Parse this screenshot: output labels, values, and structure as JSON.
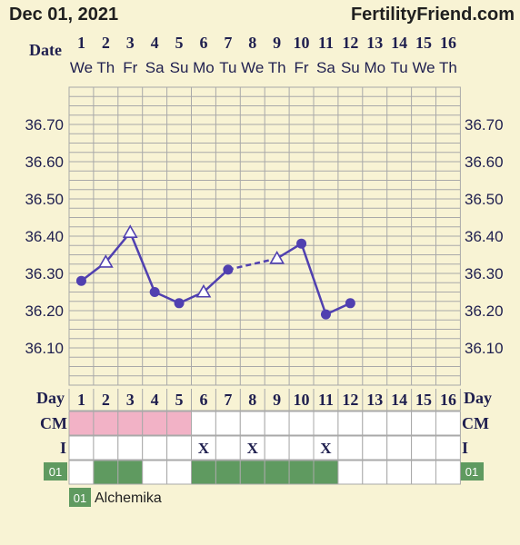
{
  "header": {
    "date": "Dec 01, 2021",
    "site": "FertilityFriend.com"
  },
  "colors": {
    "background": "#f8f3d4",
    "grid": "#a9a9a9",
    "line": "#5040b0",
    "cm_pink": "#f2b2c6",
    "green": "#5f9a60"
  },
  "chart_data": {
    "type": "line",
    "date_label": "Date",
    "x": [
      1,
      2,
      3,
      4,
      5,
      6,
      7,
      8,
      9,
      10,
      11,
      12,
      13,
      14,
      15,
      16
    ],
    "weekdays": [
      "We",
      "Th",
      "Fr",
      "Sa",
      "Su",
      "Mo",
      "Tu",
      "We",
      "Th",
      "Fr",
      "Sa",
      "Su",
      "Mo",
      "Tu",
      "We",
      "Th"
    ],
    "y_ticks": [
      "36.70",
      "36.60",
      "36.50",
      "36.40",
      "36.30",
      "36.20",
      "36.10"
    ],
    "ylim": [
      36.0,
      36.8
    ],
    "points": [
      {
        "day": 1,
        "temp": 36.28,
        "marker": "circle"
      },
      {
        "day": 2,
        "temp": 36.33,
        "marker": "triangle"
      },
      {
        "day": 3,
        "temp": 36.41,
        "marker": "triangle"
      },
      {
        "day": 4,
        "temp": 36.25,
        "marker": "circle"
      },
      {
        "day": 5,
        "temp": 36.22,
        "marker": "circle"
      },
      {
        "day": 6,
        "temp": 36.25,
        "marker": "triangle"
      },
      {
        "day": 7,
        "temp": 36.31,
        "marker": "circle"
      },
      {
        "day": 9,
        "temp": 36.34,
        "marker": "triangle"
      },
      {
        "day": 10,
        "temp": 36.38,
        "marker": "circle"
      },
      {
        "day": 11,
        "temp": 36.19,
        "marker": "circle"
      },
      {
        "day": 12,
        "temp": 36.22,
        "marker": "circle"
      }
    ],
    "segments": [
      {
        "from": 1,
        "to": 2,
        "style": "solid"
      },
      {
        "from": 2,
        "to": 3,
        "style": "solid"
      },
      {
        "from": 3,
        "to": 4,
        "style": "solid"
      },
      {
        "from": 4,
        "to": 5,
        "style": "solid"
      },
      {
        "from": 5,
        "to": 6,
        "style": "solid"
      },
      {
        "from": 6,
        "to": 7,
        "style": "solid"
      },
      {
        "from": 7,
        "to": 9,
        "style": "dashed"
      },
      {
        "from": 9,
        "to": 10,
        "style": "solid"
      },
      {
        "from": 10,
        "to": 11,
        "style": "solid"
      },
      {
        "from": 11,
        "to": 12,
        "style": "solid"
      }
    ],
    "day_label": "Day",
    "rows": {
      "cm": {
        "label": "CM",
        "pink_days": [
          1,
          2,
          3,
          4,
          5
        ]
      },
      "intercourse": {
        "label": "I",
        "mark": "X",
        "days": [
          6,
          8,
          11
        ]
      },
      "med": {
        "badge": "01",
        "green_days": [
          2,
          3,
          6,
          7,
          8,
          9,
          10,
          11
        ]
      }
    },
    "legend": {
      "badge": "01",
      "label": "Alchemika"
    }
  }
}
